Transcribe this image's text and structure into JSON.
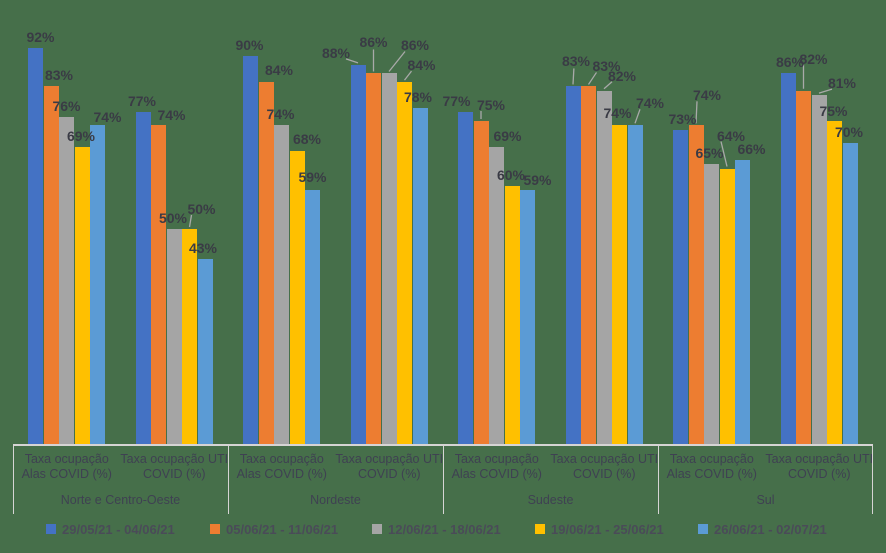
{
  "background_color": "#466F4A",
  "colors": {
    "axis_line": "#D6D4D4",
    "data_label_text": "#3A3B45",
    "axis_text": "#3F4152",
    "legend_text": "#4A4B58",
    "leader_line": "#A9A9A9"
  },
  "chart_data": {
    "type": "bar",
    "title": "",
    "ylim": [
      0,
      100
    ],
    "value_suffix": "%",
    "grid": false,
    "legend_position": "bottom",
    "regions": [
      {
        "name": "Norte e Centro-Oeste"
      },
      {
        "name": "Nordeste"
      },
      {
        "name": "Sudeste"
      },
      {
        "name": "Sul"
      }
    ],
    "category_labels": [
      {
        "line1": "Taxa ocupação",
        "line2": "Alas COVID (%)"
      },
      {
        "line1": "Taxa ocupação UTI",
        "line2": "COVID (%)"
      }
    ],
    "group_order_note": "values arrays follow: NCO-Alas, NCO-UTI, NE-Alas, NE-UTI, SE-Alas, SE-UTI, Sul-Alas, Sul-UTI",
    "series": [
      {
        "name": "29/05/21 - 04/06/21",
        "color": "#4472C4",
        "values": [
          92,
          77,
          90,
          88,
          77,
          83,
          73,
          86
        ]
      },
      {
        "name": "05/06/21 - 11/06/21",
        "color": "#ED7D31",
        "values": [
          83,
          74,
          84,
          86,
          75,
          83,
          74,
          82
        ]
      },
      {
        "name": "12/06/21 - 18/06/21",
        "color": "#A5A5A5",
        "values": [
          76,
          50,
          74,
          86,
          69,
          82,
          65,
          81
        ]
      },
      {
        "name": "19/06/21 - 25/06/21",
        "color": "#FFC000",
        "values": [
          69,
          50,
          68,
          84,
          60,
          74,
          64,
          75
        ]
      },
      {
        "name": "26/06/21 - 02/07/21",
        "color": "#5B9BD5",
        "values": [
          74,
          43,
          59,
          78,
          59,
          74,
          66,
          70
        ]
      }
    ]
  }
}
